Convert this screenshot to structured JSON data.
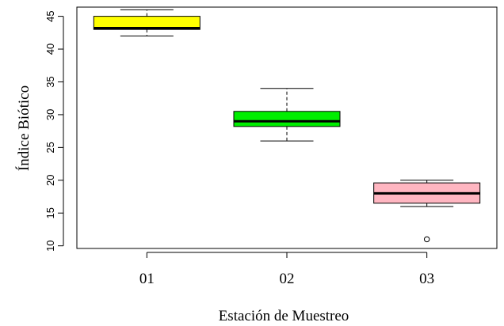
{
  "chart_data": {
    "type": "boxplot",
    "xlabel": "Estación de Muestreo",
    "ylabel": "Índice Biótico",
    "categories": [
      "01",
      "02",
      "03"
    ],
    "boxes": [
      {
        "category": "01",
        "lower_whisker": 42,
        "q1": 43,
        "median": 43.2,
        "q3": 45,
        "upper_whisker": 46,
        "outliers": [],
        "color": "#ffff00"
      },
      {
        "category": "02",
        "lower_whisker": 26,
        "q1": 28.2,
        "median": 29,
        "q3": 30.5,
        "upper_whisker": 34,
        "outliers": [],
        "color": "#00ee00"
      },
      {
        "category": "03",
        "lower_whisker": 16,
        "q1": 16.5,
        "median": 18,
        "q3": 19.6,
        "upper_whisker": 20,
        "outliers": [
          11
        ],
        "color": "#ffb6c1"
      }
    ],
    "yticks": [
      10,
      15,
      20,
      25,
      30,
      35,
      40,
      45
    ],
    "ylim": [
      9.6,
      46.4
    ],
    "grid": false,
    "legend": "none"
  }
}
